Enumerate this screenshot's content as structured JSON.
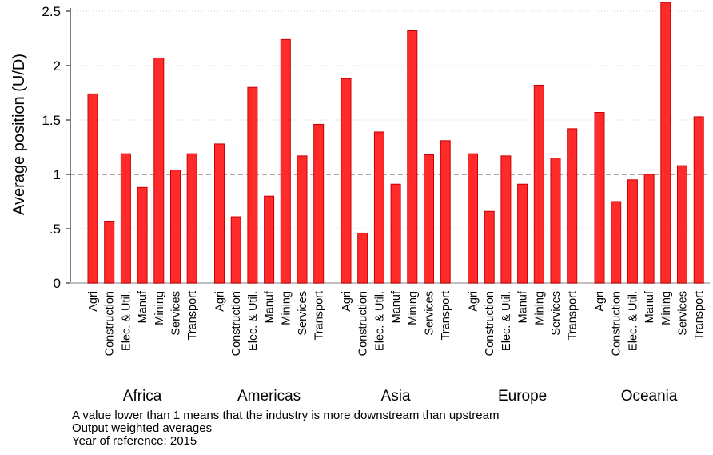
{
  "chart_data": {
    "type": "bar",
    "ylabel": "Average position (U/D)",
    "yticks": [
      {
        "value": 0,
        "label": "0"
      },
      {
        "value": 0.5,
        "label": ".5"
      },
      {
        "value": 1,
        "label": "1"
      },
      {
        "value": 1.5,
        "label": "1.5"
      },
      {
        "value": 2,
        "label": "2"
      },
      {
        "value": 2.5,
        "label": "2.5"
      }
    ],
    "ylim": [
      0,
      2.6
    ],
    "reference_line": 1,
    "grid": true,
    "bar_color": "#ff2a2a",
    "bar_edge_color": "#c80000",
    "categories": [
      "Agri",
      "Construction",
      "Elec. & Util.",
      "Manuf",
      "Mining",
      "Services",
      "Transport"
    ],
    "groups": [
      {
        "name": "Africa",
        "values": [
          1.74,
          0.57,
          1.19,
          0.88,
          2.07,
          1.04,
          1.19
        ]
      },
      {
        "name": "Americas",
        "values": [
          1.28,
          0.61,
          1.8,
          0.8,
          2.24,
          1.17,
          1.46
        ]
      },
      {
        "name": "Asia",
        "values": [
          1.88,
          0.46,
          1.39,
          0.91,
          2.32,
          1.18,
          1.31
        ]
      },
      {
        "name": "Europe",
        "values": [
          1.19,
          0.66,
          1.17,
          0.91,
          1.82,
          1.15,
          1.42
        ]
      },
      {
        "name": "Oceania",
        "values": [
          1.57,
          0.75,
          0.95,
          1.0,
          2.58,
          1.08,
          1.53
        ]
      }
    ]
  },
  "notes": [
    "A value lower than 1 means that the industry is more downstream than upstream",
    "Output weighted averages",
    "Year of reference: 2015"
  ]
}
